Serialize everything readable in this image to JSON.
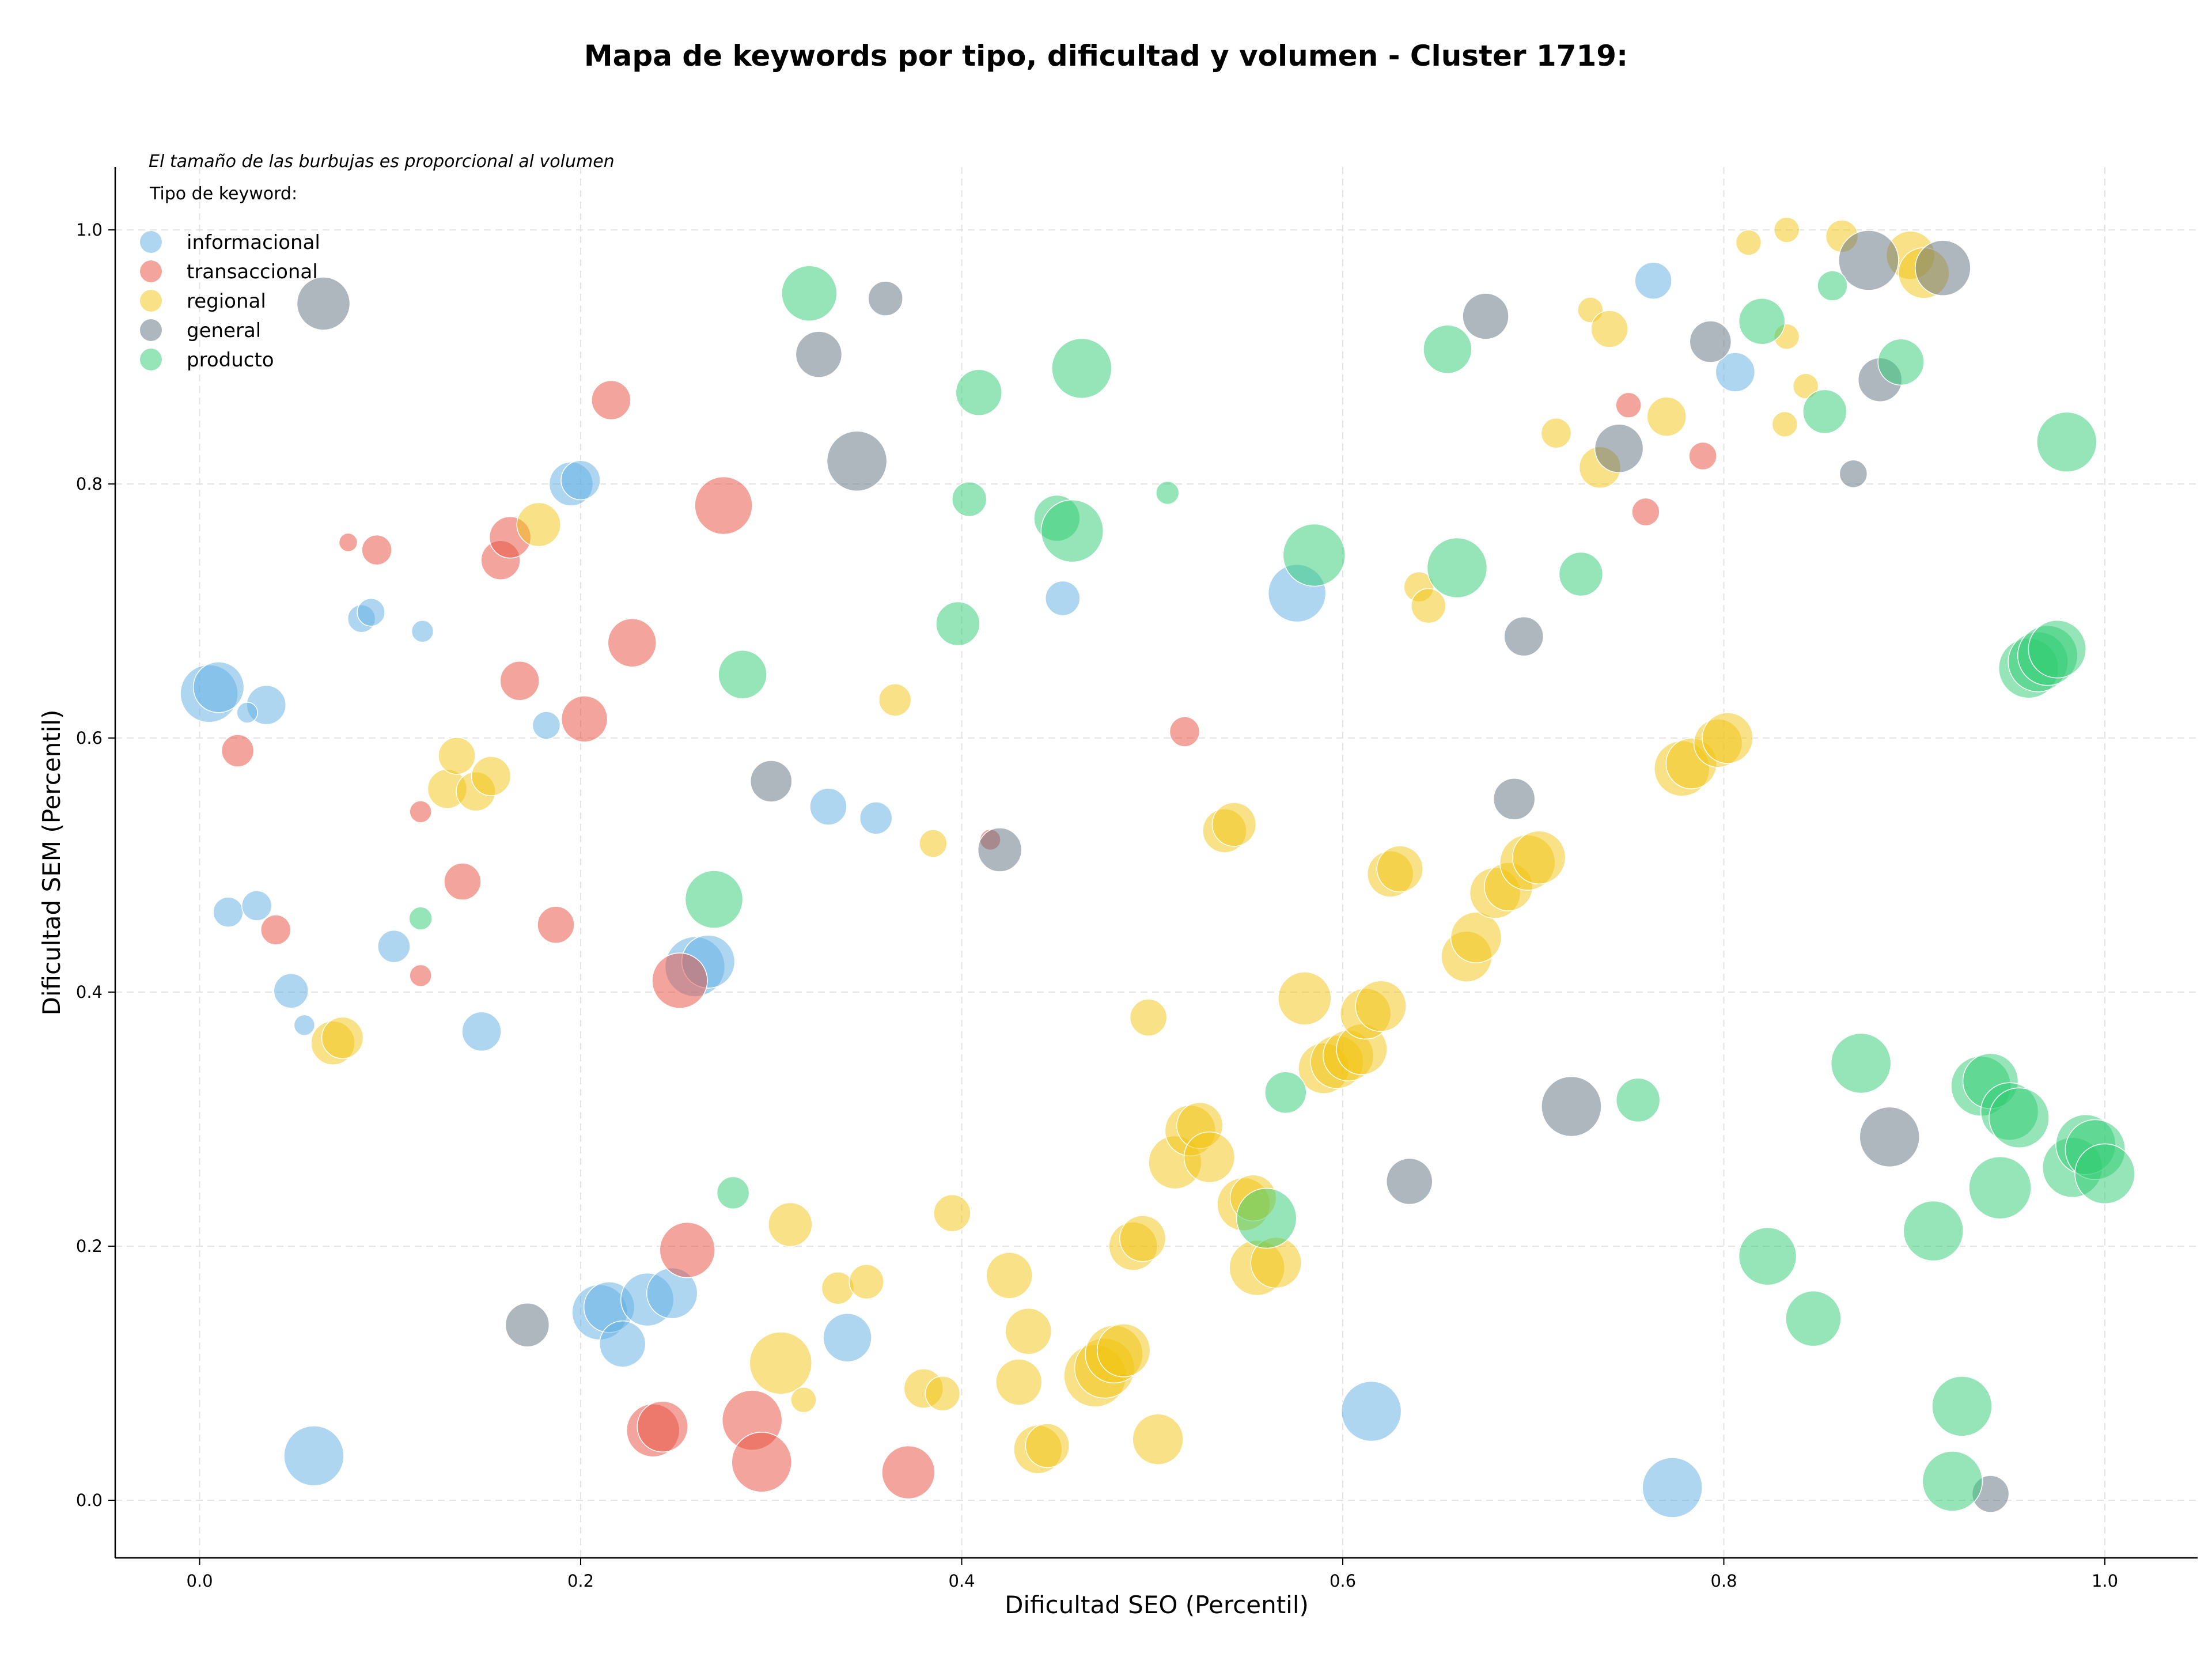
{
  "chart_data": {
    "type": "scatter",
    "title": "Mapa de keywords por tipo, dificultad y volumen - Cluster 1719:",
    "xlabel": "Dificultad SEO (Percentil)",
    "ylabel": "Dificultad SEM (Percentil)",
    "xlim": [
      -0.045,
      1.05
    ],
    "ylim": [
      -0.045,
      1.05
    ],
    "xticks": [
      "0.0",
      "0.2",
      "0.4",
      "0.6",
      "0.8",
      "1.0"
    ],
    "yticks": [
      "0.0",
      "0.2",
      "0.4",
      "0.6",
      "0.8",
      "1.0"
    ],
    "grid": true,
    "size_note": "El tamaño de las burbujas es proporcional al volumen",
    "legend": {
      "title": "Tipo de keyword:",
      "placement": "top-left",
      "entries": [
        {
          "label": "informacional",
          "color": "#5DADE2"
        },
        {
          "label": "transaccional",
          "color": "#E74C3C"
        },
        {
          "label": "regional",
          "color": "#F1C40F"
        },
        {
          "label": "general",
          "color": "#5D6D7E"
        },
        {
          "label": "producto",
          "color": "#2ECC71"
        }
      ]
    },
    "series": [
      {
        "name": "informacional",
        "color": "#5DADE2",
        "points": [
          {
            "x": 0.005,
            "y": 0.635,
            "s": 50
          },
          {
            "x": 0.01,
            "y": 0.64,
            "s": 44
          },
          {
            "x": 0.035,
            "y": 0.626,
            "s": 34
          },
          {
            "x": 0.025,
            "y": 0.62,
            "s": 18
          },
          {
            "x": 0.015,
            "y": 0.463,
            "s": 26
          },
          {
            "x": 0.03,
            "y": 0.468,
            "s": 26
          },
          {
            "x": 0.048,
            "y": 0.401,
            "s": 30
          },
          {
            "x": 0.055,
            "y": 0.374,
            "s": 18
          },
          {
            "x": 0.085,
            "y": 0.694,
            "s": 24
          },
          {
            "x": 0.09,
            "y": 0.699,
            "s": 24
          },
          {
            "x": 0.117,
            "y": 0.684,
            "s": 19
          },
          {
            "x": 0.102,
            "y": 0.436,
            "s": 28
          },
          {
            "x": 0.148,
            "y": 0.369,
            "s": 34
          },
          {
            "x": 0.182,
            "y": 0.61,
            "s": 24
          },
          {
            "x": 0.195,
            "y": 0.8,
            "s": 38
          },
          {
            "x": 0.2,
            "y": 0.803,
            "s": 34
          },
          {
            "x": 0.06,
            "y": 0.035,
            "s": 52
          },
          {
            "x": 0.21,
            "y": 0.148,
            "s": 48
          },
          {
            "x": 0.215,
            "y": 0.152,
            "s": 44
          },
          {
            "x": 0.222,
            "y": 0.123,
            "s": 40
          },
          {
            "x": 0.235,
            "y": 0.158,
            "s": 46
          },
          {
            "x": 0.248,
            "y": 0.163,
            "s": 44
          },
          {
            "x": 0.26,
            "y": 0.42,
            "s": 52
          },
          {
            "x": 0.267,
            "y": 0.424,
            "s": 46
          },
          {
            "x": 0.33,
            "y": 0.546,
            "s": 32
          },
          {
            "x": 0.355,
            "y": 0.537,
            "s": 28
          },
          {
            "x": 0.34,
            "y": 0.128,
            "s": 42
          },
          {
            "x": 0.453,
            "y": 0.71,
            "s": 30
          },
          {
            "x": 0.576,
            "y": 0.714,
            "s": 50
          },
          {
            "x": 0.615,
            "y": 0.07,
            "s": 52
          },
          {
            "x": 0.763,
            "y": 0.96,
            "s": 32
          },
          {
            "x": 0.806,
            "y": 0.888,
            "s": 34
          },
          {
            "x": 0.773,
            "y": 0.01,
            "s": 52
          }
        ]
      },
      {
        "name": "transaccional",
        "color": "#E74C3C",
        "points": [
          {
            "x": 0.02,
            "y": 0.59,
            "s": 28
          },
          {
            "x": 0.04,
            "y": 0.449,
            "s": 26
          },
          {
            "x": 0.078,
            "y": 0.754,
            "s": 16
          },
          {
            "x": 0.093,
            "y": 0.748,
            "s": 26
          },
          {
            "x": 0.116,
            "y": 0.542,
            "s": 19
          },
          {
            "x": 0.116,
            "y": 0.413,
            "s": 19
          },
          {
            "x": 0.138,
            "y": 0.487,
            "s": 32
          },
          {
            "x": 0.158,
            "y": 0.74,
            "s": 34
          },
          {
            "x": 0.163,
            "y": 0.758,
            "s": 36
          },
          {
            "x": 0.168,
            "y": 0.645,
            "s": 34
          },
          {
            "x": 0.187,
            "y": 0.453,
            "s": 32
          },
          {
            "x": 0.202,
            "y": 0.615,
            "s": 40
          },
          {
            "x": 0.216,
            "y": 0.866,
            "s": 34
          },
          {
            "x": 0.227,
            "y": 0.675,
            "s": 42
          },
          {
            "x": 0.275,
            "y": 0.783,
            "s": 50
          },
          {
            "x": 0.252,
            "y": 0.409,
            "s": 48
          },
          {
            "x": 0.256,
            "y": 0.197,
            "s": 48
          },
          {
            "x": 0.238,
            "y": 0.055,
            "s": 46
          },
          {
            "x": 0.243,
            "y": 0.058,
            "s": 44
          },
          {
            "x": 0.29,
            "y": 0.063,
            "s": 52
          },
          {
            "x": 0.295,
            "y": 0.03,
            "s": 52
          },
          {
            "x": 0.372,
            "y": 0.022,
            "s": 46
          },
          {
            "x": 0.415,
            "y": 0.52,
            "s": 18
          },
          {
            "x": 0.517,
            "y": 0.605,
            "s": 26
          },
          {
            "x": 0.75,
            "y": 0.862,
            "s": 22
          },
          {
            "x": 0.759,
            "y": 0.778,
            "s": 24
          },
          {
            "x": 0.789,
            "y": 0.822,
            "s": 24
          }
        ]
      },
      {
        "name": "regional",
        "color": "#F1C40F",
        "points": [
          {
            "x": 0.07,
            "y": 0.36,
            "s": 38
          },
          {
            "x": 0.075,
            "y": 0.364,
            "s": 36
          },
          {
            "x": 0.13,
            "y": 0.56,
            "s": 34
          },
          {
            "x": 0.135,
            "y": 0.586,
            "s": 32
          },
          {
            "x": 0.145,
            "y": 0.558,
            "s": 34
          },
          {
            "x": 0.153,
            "y": 0.57,
            "s": 34
          },
          {
            "x": 0.178,
            "y": 0.768,
            "s": 38
          },
          {
            "x": 0.305,
            "y": 0.108,
            "s": 54
          },
          {
            "x": 0.31,
            "y": 0.217,
            "s": 38
          },
          {
            "x": 0.317,
            "y": 0.079,
            "s": 22
          },
          {
            "x": 0.335,
            "y": 0.167,
            "s": 28
          },
          {
            "x": 0.35,
            "y": 0.172,
            "s": 30
          },
          {
            "x": 0.365,
            "y": 0.63,
            "s": 28
          },
          {
            "x": 0.38,
            "y": 0.088,
            "s": 34
          },
          {
            "x": 0.385,
            "y": 0.517,
            "s": 24
          },
          {
            "x": 0.39,
            "y": 0.084,
            "s": 30
          },
          {
            "x": 0.395,
            "y": 0.226,
            "s": 32
          },
          {
            "x": 0.425,
            "y": 0.177,
            "s": 40
          },
          {
            "x": 0.43,
            "y": 0.093,
            "s": 40
          },
          {
            "x": 0.435,
            "y": 0.133,
            "s": 40
          },
          {
            "x": 0.44,
            "y": 0.04,
            "s": 42
          },
          {
            "x": 0.445,
            "y": 0.043,
            "s": 38
          },
          {
            "x": 0.47,
            "y": 0.098,
            "s": 54
          },
          {
            "x": 0.475,
            "y": 0.104,
            "s": 52
          },
          {
            "x": 0.48,
            "y": 0.115,
            "s": 50
          },
          {
            "x": 0.485,
            "y": 0.118,
            "s": 46
          },
          {
            "x": 0.49,
            "y": 0.2,
            "s": 42
          },
          {
            "x": 0.495,
            "y": 0.206,
            "s": 40
          },
          {
            "x": 0.498,
            "y": 0.38,
            "s": 32
          },
          {
            "x": 0.503,
            "y": 0.048,
            "s": 44
          },
          {
            "x": 0.512,
            "y": 0.266,
            "s": 46
          },
          {
            "x": 0.52,
            "y": 0.291,
            "s": 44
          },
          {
            "x": 0.525,
            "y": 0.295,
            "s": 40
          },
          {
            "x": 0.53,
            "y": 0.27,
            "s": 44
          },
          {
            "x": 0.538,
            "y": 0.527,
            "s": 38
          },
          {
            "x": 0.543,
            "y": 0.532,
            "s": 38
          },
          {
            "x": 0.548,
            "y": 0.233,
            "s": 46
          },
          {
            "x": 0.553,
            "y": 0.238,
            "s": 40
          },
          {
            "x": 0.555,
            "y": 0.183,
            "s": 48
          },
          {
            "x": 0.565,
            "y": 0.187,
            "s": 44
          },
          {
            "x": 0.58,
            "y": 0.395,
            "s": 46
          },
          {
            "x": 0.59,
            "y": 0.34,
            "s": 44
          },
          {
            "x": 0.597,
            "y": 0.345,
            "s": 46
          },
          {
            "x": 0.603,
            "y": 0.35,
            "s": 44
          },
          {
            "x": 0.61,
            "y": 0.355,
            "s": 44
          },
          {
            "x": 0.612,
            "y": 0.383,
            "s": 44
          },
          {
            "x": 0.62,
            "y": 0.389,
            "s": 44
          },
          {
            "x": 0.625,
            "y": 0.493,
            "s": 40
          },
          {
            "x": 0.63,
            "y": 0.497,
            "s": 40
          },
          {
            "x": 0.64,
            "y": 0.719,
            "s": 26
          },
          {
            "x": 0.645,
            "y": 0.704,
            "s": 30
          },
          {
            "x": 0.665,
            "y": 0.428,
            "s": 44
          },
          {
            "x": 0.67,
            "y": 0.443,
            "s": 44
          },
          {
            "x": 0.68,
            "y": 0.478,
            "s": 44
          },
          {
            "x": 0.687,
            "y": 0.483,
            "s": 42
          },
          {
            "x": 0.697,
            "y": 0.502,
            "s": 48
          },
          {
            "x": 0.703,
            "y": 0.506,
            "s": 46
          },
          {
            "x": 0.712,
            "y": 0.84,
            "s": 26
          },
          {
            "x": 0.73,
            "y": 0.937,
            "s": 22
          },
          {
            "x": 0.735,
            "y": 0.813,
            "s": 36
          },
          {
            "x": 0.74,
            "y": 0.922,
            "s": 32
          },
          {
            "x": 0.77,
            "y": 0.853,
            "s": 34
          },
          {
            "x": 0.778,
            "y": 0.576,
            "s": 48
          },
          {
            "x": 0.783,
            "y": 0.58,
            "s": 44
          },
          {
            "x": 0.797,
            "y": 0.596,
            "s": 42
          },
          {
            "x": 0.802,
            "y": 0.6,
            "s": 44
          },
          {
            "x": 0.813,
            "y": 0.99,
            "s": 22
          },
          {
            "x": 0.833,
            "y": 1.0,
            "s": 22
          },
          {
            "x": 0.832,
            "y": 0.847,
            "s": 22
          },
          {
            "x": 0.833,
            "y": 0.916,
            "s": 22
          },
          {
            "x": 0.843,
            "y": 0.877,
            "s": 22
          },
          {
            "x": 0.862,
            "y": 0.995,
            "s": 28
          },
          {
            "x": 0.898,
            "y": 0.98,
            "s": 42
          },
          {
            "x": 0.905,
            "y": 0.966,
            "s": 44
          }
        ]
      },
      {
        "name": "general",
        "color": "#5D6D7E",
        "points": [
          {
            "x": 0.065,
            "y": 0.942,
            "s": 46
          },
          {
            "x": 0.172,
            "y": 0.138,
            "s": 38
          },
          {
            "x": 0.3,
            "y": 0.566,
            "s": 36
          },
          {
            "x": 0.325,
            "y": 0.902,
            "s": 40
          },
          {
            "x": 0.345,
            "y": 0.818,
            "s": 52
          },
          {
            "x": 0.36,
            "y": 0.946,
            "s": 30
          },
          {
            "x": 0.42,
            "y": 0.512,
            "s": 38
          },
          {
            "x": 0.635,
            "y": 0.251,
            "s": 40
          },
          {
            "x": 0.675,
            "y": 0.932,
            "s": 40
          },
          {
            "x": 0.69,
            "y": 0.552,
            "s": 36
          },
          {
            "x": 0.695,
            "y": 0.68,
            "s": 34
          },
          {
            "x": 0.72,
            "y": 0.31,
            "s": 52
          },
          {
            "x": 0.745,
            "y": 0.828,
            "s": 42
          },
          {
            "x": 0.793,
            "y": 0.912,
            "s": 36
          },
          {
            "x": 0.868,
            "y": 0.808,
            "s": 24
          },
          {
            "x": 0.876,
            "y": 0.976,
            "s": 52
          },
          {
            "x": 0.882,
            "y": 0.882,
            "s": 38
          },
          {
            "x": 0.887,
            "y": 0.286,
            "s": 52
          },
          {
            "x": 0.915,
            "y": 0.97,
            "s": 48
          },
          {
            "x": 0.94,
            "y": 0.005,
            "s": 32
          }
        ]
      },
      {
        "name": "producto",
        "color": "#2ECC71",
        "points": [
          {
            "x": 0.116,
            "y": 0.458,
            "s": 20
          },
          {
            "x": 0.27,
            "y": 0.473,
            "s": 50
          },
          {
            "x": 0.28,
            "y": 0.242,
            "s": 28
          },
          {
            "x": 0.285,
            "y": 0.65,
            "s": 42
          },
          {
            "x": 0.32,
            "y": 0.95,
            "s": 48
          },
          {
            "x": 0.398,
            "y": 0.69,
            "s": 38
          },
          {
            "x": 0.404,
            "y": 0.788,
            "s": 30
          },
          {
            "x": 0.409,
            "y": 0.872,
            "s": 40
          },
          {
            "x": 0.45,
            "y": 0.773,
            "s": 40
          },
          {
            "x": 0.458,
            "y": 0.763,
            "s": 54
          },
          {
            "x": 0.463,
            "y": 0.891,
            "s": 52
          },
          {
            "x": 0.508,
            "y": 0.793,
            "s": 20
          },
          {
            "x": 0.56,
            "y": 0.222,
            "s": 52
          },
          {
            "x": 0.57,
            "y": 0.321,
            "s": 36
          },
          {
            "x": 0.585,
            "y": 0.744,
            "s": 54
          },
          {
            "x": 0.655,
            "y": 0.906,
            "s": 42
          },
          {
            "x": 0.66,
            "y": 0.734,
            "s": 52
          },
          {
            "x": 0.725,
            "y": 0.729,
            "s": 38
          },
          {
            "x": 0.755,
            "y": 0.315,
            "s": 38
          },
          {
            "x": 0.82,
            "y": 0.928,
            "s": 40
          },
          {
            "x": 0.823,
            "y": 0.192,
            "s": 50
          },
          {
            "x": 0.847,
            "y": 0.143,
            "s": 48
          },
          {
            "x": 0.853,
            "y": 0.857,
            "s": 38
          },
          {
            "x": 0.857,
            "y": 0.956,
            "s": 26
          },
          {
            "x": 0.872,
            "y": 0.344,
            "s": 52
          },
          {
            "x": 0.893,
            "y": 0.896,
            "s": 40
          },
          {
            "x": 0.91,
            "y": 0.212,
            "s": 52
          },
          {
            "x": 0.92,
            "y": 0.015,
            "s": 52
          },
          {
            "x": 0.925,
            "y": 0.074,
            "s": 52
          },
          {
            "x": 0.935,
            "y": 0.326,
            "s": 52
          },
          {
            "x": 0.94,
            "y": 0.33,
            "s": 48
          },
          {
            "x": 0.945,
            "y": 0.246,
            "s": 54
          },
          {
            "x": 0.95,
            "y": 0.306,
            "s": 50
          },
          {
            "x": 0.955,
            "y": 0.301,
            "s": 52
          },
          {
            "x": 0.96,
            "y": 0.655,
            "s": 52
          },
          {
            "x": 0.965,
            "y": 0.66,
            "s": 52
          },
          {
            "x": 0.97,
            "y": 0.665,
            "s": 52
          },
          {
            "x": 0.975,
            "y": 0.67,
            "s": 50
          },
          {
            "x": 0.98,
            "y": 0.833,
            "s": 52
          },
          {
            "x": 0.983,
            "y": 0.262,
            "s": 52
          },
          {
            "x": 0.99,
            "y": 0.28,
            "s": 52
          },
          {
            "x": 0.995,
            "y": 0.276,
            "s": 52
          },
          {
            "x": 1.0,
            "y": 0.257,
            "s": 52
          }
        ]
      }
    ]
  }
}
